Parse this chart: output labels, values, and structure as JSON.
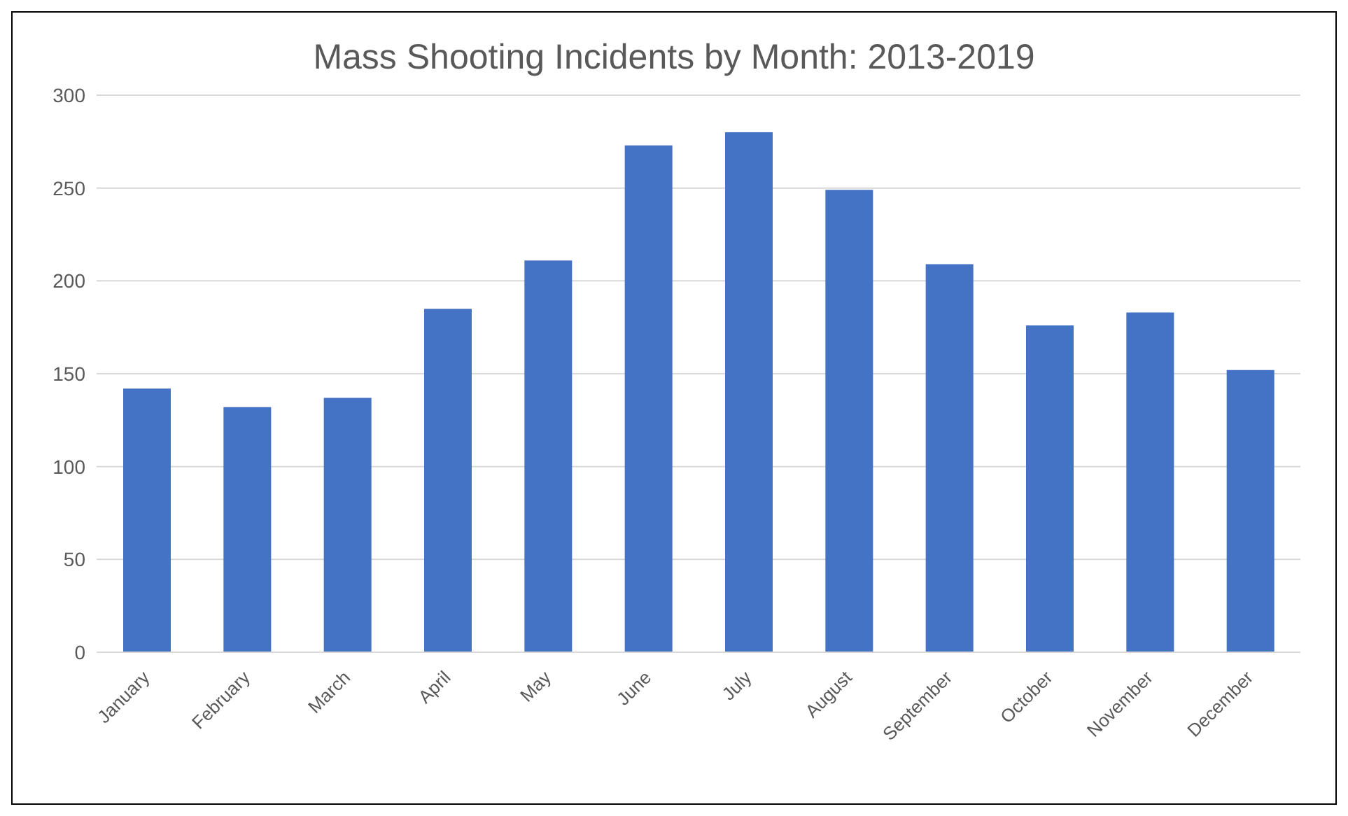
{
  "chart_data": {
    "type": "bar",
    "title": "Mass Shooting Incidents by Month: 2013-2019",
    "categories": [
      "January",
      "February",
      "March",
      "April",
      "May",
      "June",
      "July",
      "August",
      "September",
      "October",
      "November",
      "December"
    ],
    "values": [
      142,
      132,
      137,
      185,
      211,
      273,
      280,
      249,
      209,
      176,
      183,
      152
    ],
    "color": "#4472c4",
    "ylim": [
      0,
      300
    ],
    "yticks": [
      0,
      50,
      100,
      150,
      200,
      250,
      300
    ],
    "grid": "y"
  }
}
